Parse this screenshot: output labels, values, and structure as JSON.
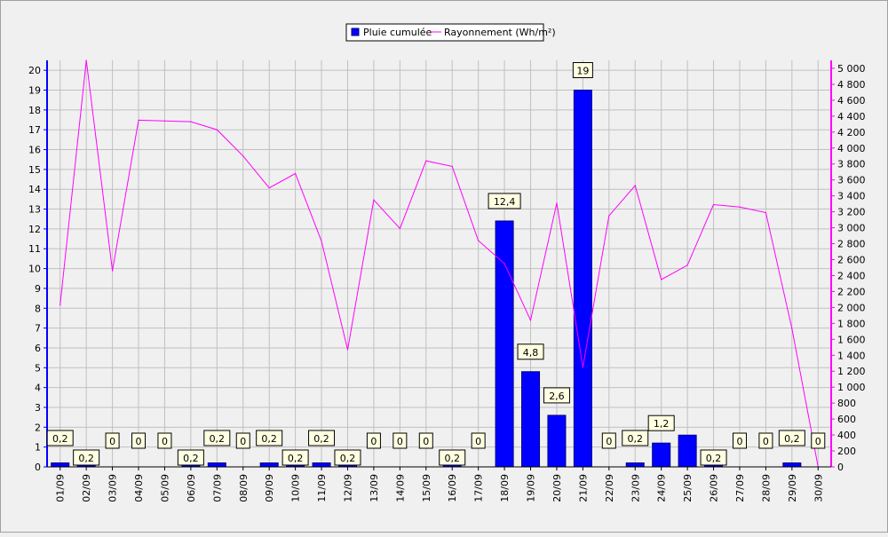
{
  "chart_data": {
    "type": "bar",
    "legend": {
      "placement": "top-center",
      "items": [
        {
          "label": "Pluie cumulée",
          "color": "#0000ff",
          "kind": "bar"
        },
        {
          "label": "Rayonnement (Wh/m²)",
          "color": "#ff00ff",
          "kind": "line"
        }
      ]
    },
    "categories": [
      "01/09",
      "02/09",
      "03/09",
      "04/09",
      "05/09",
      "06/09",
      "07/09",
      "08/09",
      "09/09",
      "10/09",
      "11/09",
      "12/09",
      "13/09",
      "14/09",
      "15/09",
      "16/09",
      "17/09",
      "18/09",
      "19/09",
      "20/09",
      "21/09",
      "22/09",
      "23/09",
      "24/09",
      "25/09",
      "26/09",
      "27/09",
      "28/09",
      "29/09",
      "30/09"
    ],
    "grid": true,
    "series": [
      {
        "name": "Pluie cumulée",
        "axis": "left",
        "type": "bar",
        "color": "#0000ff",
        "values": [
          0.2,
          0.2,
          0,
          0,
          0,
          0.2,
          0.2,
          0,
          0.2,
          0.2,
          0.2,
          0.2,
          0,
          0,
          0,
          0.2,
          0,
          12.4,
          4.8,
          2.6,
          19,
          0,
          0.2,
          1.2,
          1.6,
          0.2,
          0,
          0,
          0.2,
          0
        ],
        "labels": [
          "0,2",
          "0,2",
          "0",
          "0",
          "0",
          "0,2",
          "0,2",
          "0",
          "0,2",
          "0,2",
          "0,2",
          "0,2",
          "0",
          "0",
          "0",
          "0,2",
          "0",
          "12,4",
          "4,8",
          "2,6",
          "19",
          "0",
          "0,2",
          "1,2",
          "",
          "0,2",
          "0",
          "0",
          "0,2",
          "0"
        ]
      },
      {
        "name": "Rayonnement (Wh/m²)",
        "axis": "right",
        "type": "line",
        "color": "#ff00ff",
        "values": [
          2030,
          5100,
          2460,
          4350,
          4340,
          4330,
          4230,
          3900,
          3500,
          3680,
          2830,
          1470,
          3350,
          2990,
          3840,
          3770,
          2840,
          2550,
          1840,
          3310,
          1250,
          3150,
          3530,
          2350,
          2530,
          3290,
          3260,
          3190,
          1730,
          0
        ]
      }
    ],
    "y_left": {
      "min": 0,
      "max": 20.5,
      "ticks": [
        0,
        1,
        2,
        3,
        4,
        5,
        6,
        7,
        8,
        9,
        10,
        11,
        12,
        13,
        14,
        15,
        16,
        17,
        18,
        19,
        20
      ]
    },
    "y_right": {
      "min": 0,
      "max": 5100,
      "ticks": [
        "0",
        "200",
        "400",
        "600",
        "800",
        "1 000",
        "1 200",
        "1 400",
        "1 600",
        "1 800",
        "2 000",
        "2 200",
        "2 400",
        "2 600",
        "2 800",
        "3 000",
        "3 200",
        "3 400",
        "3 600",
        "3 800",
        "4 000",
        "4 200",
        "4 400",
        "4 600",
        "4 800",
        "5 000"
      ]
    }
  }
}
